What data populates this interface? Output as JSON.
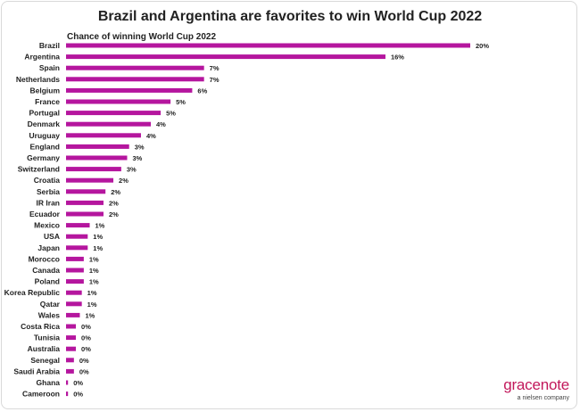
{
  "chart_data": {
    "type": "bar",
    "orientation": "horizontal",
    "title": "Brazil and Argentina are favorites to win World Cup 2022",
    "subtitle": "Chance of winning World Cup 2022",
    "categories": [
      "Brazil",
      "Argentina",
      "Spain",
      "Netherlands",
      "Belgium",
      "France",
      "Portugal",
      "Denmark",
      "Uruguay",
      "England",
      "Germany",
      "Switzerland",
      "Croatia",
      "Serbia",
      "IR Iran",
      "Ecuador",
      "Mexico",
      "USA",
      "Japan",
      "Morocco",
      "Canada",
      "Poland",
      "Korea Republic",
      "Qatar",
      "Wales",
      "Costa Rica",
      "Tunisia",
      "Australia",
      "Senegal",
      "Saudi Arabia",
      "Ghana",
      "Cameroon"
    ],
    "values": [
      20.5,
      16.2,
      7.0,
      7.0,
      6.4,
      5.3,
      4.8,
      4.3,
      3.8,
      3.2,
      3.1,
      2.8,
      2.4,
      2.0,
      1.9,
      1.9,
      1.2,
      1.1,
      1.1,
      0.9,
      0.9,
      0.9,
      0.8,
      0.8,
      0.7,
      0.5,
      0.5,
      0.5,
      0.4,
      0.4,
      0.1,
      0.1
    ],
    "value_labels": [
      "20%",
      "16%",
      "7%",
      "7%",
      "6%",
      "5%",
      "5%",
      "4%",
      "4%",
      "3%",
      "3%",
      "3%",
      "2%",
      "2%",
      "2%",
      "2%",
      "1%",
      "1%",
      "1%",
      "1%",
      "1%",
      "1%",
      "1%",
      "1%",
      "1%",
      "0%",
      "0%",
      "0%",
      "0%",
      "0%",
      "0%",
      "0%"
    ],
    "xlim": [
      0,
      20.5
    ],
    "grid": false,
    "legend": "none",
    "bar_color": "#b5169e"
  },
  "branding": {
    "logo_text": "gracenote",
    "logo_subtext": "a nielsen company",
    "logo_color": "#c2185b"
  }
}
